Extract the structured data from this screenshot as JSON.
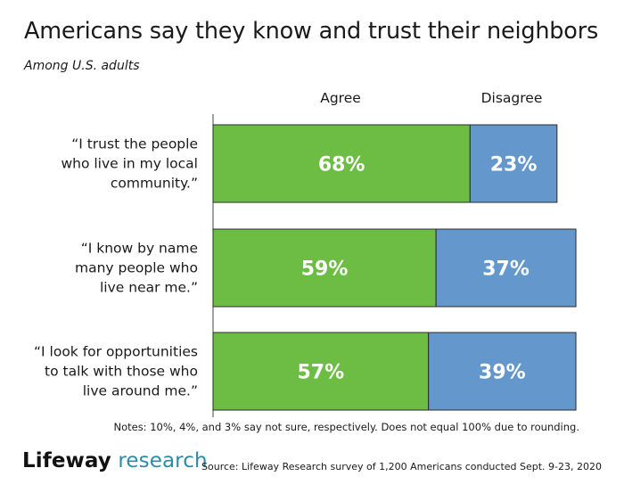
{
  "header": {
    "title": "Americans say they know and trust their neighbors",
    "subtitle": "Among U.S. adults"
  },
  "legend": {
    "agree": "Agree",
    "disagree": "Disagree"
  },
  "colors": {
    "agree": "#6dbd45",
    "disagree": "#6497cc",
    "bar_outline": "#2b2b2b"
  },
  "chart_data": {
    "type": "bar",
    "orientation": "horizontal",
    "stacked": true,
    "categories": [
      "“I trust the people who live in my local community.”",
      "“I know by name many people who live near me.”",
      "“I look for opportunities to talk with those who live around me.”"
    ],
    "category_lines": [
      [
        "“I trust the people",
        "who live in my local",
        "community.”"
      ],
      [
        "“I know by name",
        "many people who",
        "live near me.”"
      ],
      [
        "“I look for opportunities",
        "to talk with those who",
        "live around me.”"
      ]
    ],
    "series": [
      {
        "name": "Agree",
        "values": [
          68,
          59,
          57
        ],
        "labels": [
          "68%",
          "59%",
          "57%"
        ]
      },
      {
        "name": "Disagree",
        "values": [
          23,
          37,
          39
        ],
        "labels": [
          "23%",
          "37%",
          "39%"
        ]
      }
    ],
    "xlim": [
      0,
      100
    ],
    "grid": false
  },
  "footer": {
    "notes": "Notes: 10%, 4%, and 3% say not sure, respectively. Does not equal 100% due to rounding.",
    "logo_word1": "Lifeway",
    "logo_word2": "research",
    "source": "Source: Lifeway Research survey of 1,200 Americans conducted Sept. 9-23, 2020"
  }
}
